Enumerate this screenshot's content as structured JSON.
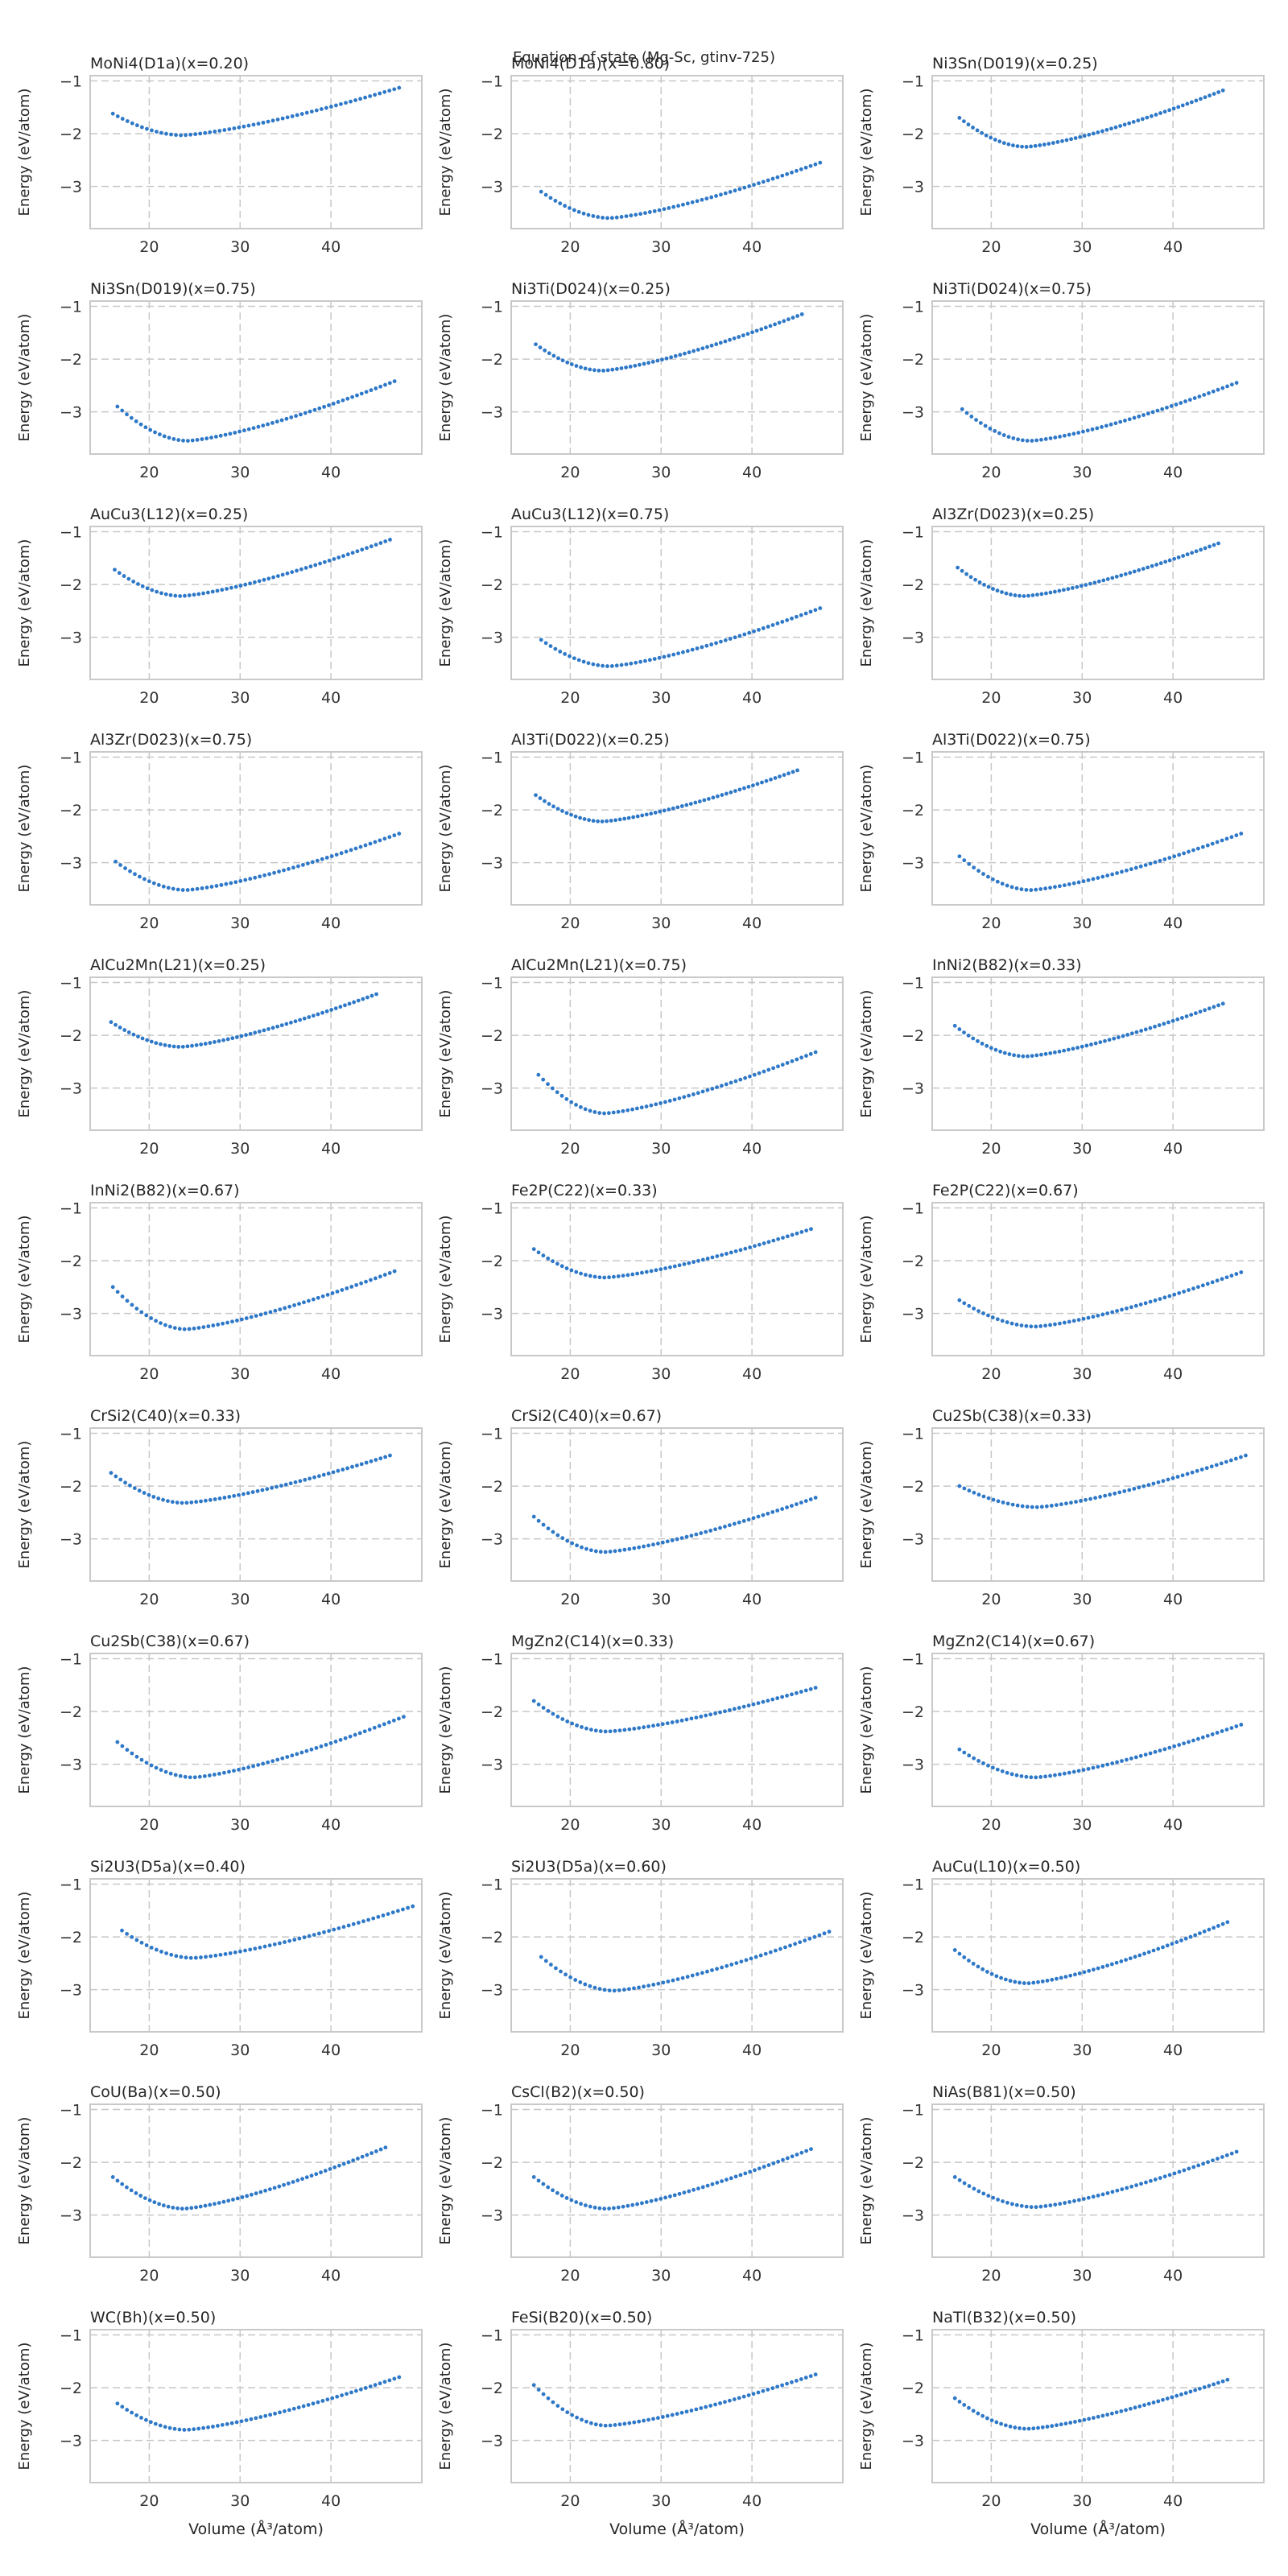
{
  "figure": {
    "title": "Equation of state (Mg-Sc, gtinv-725)"
  },
  "chart_data": {
    "type": "scatter",
    "layout": {
      "rows": 11,
      "cols": 3
    },
    "xlabel": "Volume (Å$^3$/atom)",
    "ylabel": "Energy (eV/atom)",
    "xticks": [
      20,
      30,
      40
    ],
    "yticks": [
      -1,
      -2,
      -3
    ],
    "ytick_labels": [
      "−1",
      "−2",
      "−3"
    ],
    "xlim": [
      13.5,
      50
    ],
    "ylim": [
      -3.8,
      -0.9
    ],
    "grid": true,
    "marker_color": "#2e78c8",
    "subplots": [
      {
        "title": "MoNi4(D1a)(x=0.20)",
        "curve": {
          "x0": 16.0,
          "x1": 47.5,
          "xm": 23.6,
          "e0": -1.62,
          "emin": -2.03,
          "e1": -1.13
        }
      },
      {
        "title": "MoNi4(D1a)(x=0.80)",
        "curve": {
          "x0": 16.8,
          "x1": 47.5,
          "xm": 24.3,
          "e0": -3.1,
          "emin": -3.6,
          "e1": -2.55
        }
      },
      {
        "title": "Ni3Sn(D019)(x=0.25)",
        "curve": {
          "x0": 16.5,
          "x1": 45.5,
          "xm": 23.8,
          "e0": -1.7,
          "emin": -2.25,
          "e1": -1.18
        }
      },
      {
        "title": "Ni3Sn(D019)(x=0.75)",
        "curve": {
          "x0": 16.5,
          "x1": 47.0,
          "xm": 24.2,
          "e0": -2.9,
          "emin": -3.55,
          "e1": -2.42
        }
      },
      {
        "title": "Ni3Ti(D024)(x=0.25)",
        "curve": {
          "x0": 16.2,
          "x1": 45.5,
          "xm": 23.5,
          "e0": -1.72,
          "emin": -2.22,
          "e1": -1.15
        }
      },
      {
        "title": "Ni3Ti(D024)(x=0.75)",
        "curve": {
          "x0": 16.8,
          "x1": 47.0,
          "xm": 24.3,
          "e0": -2.95,
          "emin": -3.55,
          "e1": -2.45
        }
      },
      {
        "title": "AuCu3(L12)(x=0.25)",
        "curve": {
          "x0": 16.2,
          "x1": 46.5,
          "xm": 23.5,
          "e0": -1.72,
          "emin": -2.22,
          "e1": -1.15
        }
      },
      {
        "title": "AuCu3(L12)(x=0.75)",
        "curve": {
          "x0": 16.8,
          "x1": 47.5,
          "xm": 24.3,
          "e0": -3.05,
          "emin": -3.55,
          "e1": -2.45
        }
      },
      {
        "title": "Al3Zr(D023)(x=0.25)",
        "curve": {
          "x0": 16.3,
          "x1": 45.0,
          "xm": 23.6,
          "e0": -1.68,
          "emin": -2.22,
          "e1": -1.22
        }
      },
      {
        "title": "Al3Zr(D023)(x=0.75)",
        "curve": {
          "x0": 16.3,
          "x1": 47.5,
          "xm": 24.0,
          "e0": -2.98,
          "emin": -3.52,
          "e1": -2.45
        }
      },
      {
        "title": "Al3Ti(D022)(x=0.25)",
        "curve": {
          "x0": 16.2,
          "x1": 45.0,
          "xm": 23.5,
          "e0": -1.72,
          "emin": -2.22,
          "e1": -1.25
        }
      },
      {
        "title": "Al3Ti(D022)(x=0.75)",
        "curve": {
          "x0": 16.5,
          "x1": 47.5,
          "xm": 24.3,
          "e0": -2.88,
          "emin": -3.52,
          "e1": -2.45
        }
      },
      {
        "title": "AlCu2Mn(L21)(x=0.25)",
        "curve": {
          "x0": 15.8,
          "x1": 45.0,
          "xm": 23.5,
          "e0": -1.75,
          "emin": -2.22,
          "e1": -1.22
        }
      },
      {
        "title": "AlCu2Mn(L21)(x=0.75)",
        "curve": {
          "x0": 16.5,
          "x1": 47.0,
          "xm": 23.8,
          "e0": -2.75,
          "emin": -3.48,
          "e1": -2.32
        }
      },
      {
        "title": "InNi2(B82)(x=0.33)",
        "curve": {
          "x0": 16.0,
          "x1": 45.5,
          "xm": 23.8,
          "e0": -1.82,
          "emin": -2.4,
          "e1": -1.4
        }
      },
      {
        "title": "InNi2(B82)(x=0.67)",
        "curve": {
          "x0": 16.0,
          "x1": 47.0,
          "xm": 24.0,
          "e0": -2.5,
          "emin": -3.3,
          "e1": -2.2
        }
      },
      {
        "title": "Fe2P(C22)(x=0.33)",
        "curve": {
          "x0": 16.0,
          "x1": 46.5,
          "xm": 23.8,
          "e0": -1.78,
          "emin": -2.32,
          "e1": -1.4
        }
      },
      {
        "title": "Fe2P(C22)(x=0.67)",
        "curve": {
          "x0": 16.5,
          "x1": 47.5,
          "xm": 24.8,
          "e0": -2.75,
          "emin": -3.25,
          "e1": -2.22
        }
      },
      {
        "title": "CrSi2(C40)(x=0.33)",
        "curve": {
          "x0": 15.8,
          "x1": 46.5,
          "xm": 23.8,
          "e0": -1.75,
          "emin": -2.32,
          "e1": -1.42
        }
      },
      {
        "title": "CrSi2(C40)(x=0.67)",
        "curve": {
          "x0": 16.0,
          "x1": 47.0,
          "xm": 23.8,
          "e0": -2.58,
          "emin": -3.25,
          "e1": -2.22
        }
      },
      {
        "title": "Cu2Sb(C38)(x=0.33)",
        "curve": {
          "x0": 16.5,
          "x1": 48.0,
          "xm": 25.0,
          "e0": -2.0,
          "emin": -2.4,
          "e1": -1.42
        }
      },
      {
        "title": "Cu2Sb(C38)(x=0.67)",
        "curve": {
          "x0": 16.5,
          "x1": 48.0,
          "xm": 24.8,
          "e0": -2.58,
          "emin": -3.25,
          "e1": -2.1
        }
      },
      {
        "title": "MgZn2(C14)(x=0.33)",
        "curve": {
          "x0": 16.0,
          "x1": 47.0,
          "xm": 24.0,
          "e0": -1.8,
          "emin": -2.38,
          "e1": -1.55
        }
      },
      {
        "title": "MgZn2(C14)(x=0.67)",
        "curve": {
          "x0": 16.5,
          "x1": 47.5,
          "xm": 24.8,
          "e0": -2.72,
          "emin": -3.25,
          "e1": -2.25
        }
      },
      {
        "title": "Si2U3(D5a)(x=0.40)",
        "curve": {
          "x0": 17.0,
          "x1": 49.0,
          "xm": 24.8,
          "e0": -1.88,
          "emin": -2.4,
          "e1": -1.42
        }
      },
      {
        "title": "Si2U3(D5a)(x=0.60)",
        "curve": {
          "x0": 16.8,
          "x1": 48.5,
          "xm": 24.8,
          "e0": -2.38,
          "emin": -3.02,
          "e1": -1.9
        }
      },
      {
        "title": "AuCu(L10)(x=0.50)",
        "curve": {
          "x0": 16.0,
          "x1": 46.0,
          "xm": 24.0,
          "e0": -2.25,
          "emin": -2.88,
          "e1": -1.72
        }
      },
      {
        "title": "CoU(Ba)(x=0.50)",
        "curve": {
          "x0": 16.0,
          "x1": 46.0,
          "xm": 23.8,
          "e0": -2.28,
          "emin": -2.88,
          "e1": -1.72
        }
      },
      {
        "title": "CsCl(B2)(x=0.50)",
        "curve": {
          "x0": 16.0,
          "x1": 46.5,
          "xm": 24.0,
          "e0": -2.28,
          "emin": -2.88,
          "e1": -1.75
        }
      },
      {
        "title": "NiAs(B81)(x=0.50)",
        "curve": {
          "x0": 16.0,
          "x1": 47.0,
          "xm": 24.8,
          "e0": -2.28,
          "emin": -2.85,
          "e1": -1.8
        }
      },
      {
        "title": "WC(Bh)(x=0.50)",
        "curve": {
          "x0": 16.5,
          "x1": 47.5,
          "xm": 24.0,
          "e0": -2.3,
          "emin": -2.8,
          "e1": -1.8
        }
      },
      {
        "title": "FeSi(B20)(x=0.50)",
        "curve": {
          "x0": 16.0,
          "x1": 47.0,
          "xm": 24.0,
          "e0": -1.95,
          "emin": -2.72,
          "e1": -1.75
        }
      },
      {
        "title": "NaTl(B32)(x=0.50)",
        "curve": {
          "x0": 16.0,
          "x1": 46.0,
          "xm": 24.0,
          "e0": -2.2,
          "emin": -2.78,
          "e1": -1.85
        }
      }
    ]
  }
}
